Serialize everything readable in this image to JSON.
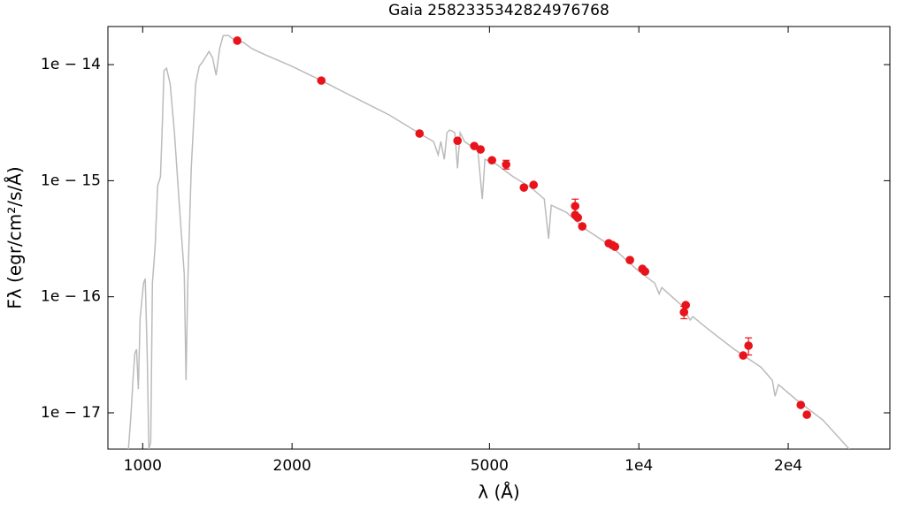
{
  "chart_data": {
    "type": "scatter",
    "title": "Gaia 2582335342824976768",
    "xlabel": "λ (Å)",
    "ylabel": "Fλ (egr/cm²/s/Å)",
    "xscale": "log",
    "yscale": "log",
    "xlim": [
      851,
      32060
    ],
    "ylim": [
      4.87e-18,
      2.13e-14
    ],
    "xticks": [
      1000,
      2000,
      5000,
      {
        "value": 10000,
        "label": "1e4"
      },
      {
        "value": 20000,
        "label": "2e4"
      }
    ],
    "yticks": [
      {
        "value": 1e-14,
        "label": "1e − 14"
      },
      {
        "value": 1e-15,
        "label": "1e − 15"
      },
      {
        "value": 1e-16,
        "label": "1e − 16"
      },
      {
        "value": 1e-17,
        "label": "1e − 17"
      }
    ],
    "model": {
      "color": "#bbbbbb",
      "x": [
        936,
        947,
        956,
        964,
        972,
        980,
        988,
        996,
        1004,
        1012,
        1021,
        1029,
        1038,
        1046,
        1059,
        1072,
        1086,
        1094,
        1104,
        1117,
        1136,
        1159,
        1188,
        1213,
        1223,
        1233,
        1253,
        1279,
        1300,
        1327,
        1360,
        1383,
        1406,
        1429,
        1453,
        1489,
        1532,
        1597,
        1663,
        1769,
        2000,
        2291,
        2667,
        3142,
        3614,
        3860,
        3940,
        3988,
        4054,
        4104,
        4155,
        4206,
        4258,
        4311,
        4364,
        4455,
        4738,
        4836,
        4896,
        5142,
        5584,
        6061,
        6447,
        6580,
        6661,
        7142,
        7755,
        8770,
        9917,
        10764,
        10990,
        11120,
        12178,
        12690,
        12845,
        13772,
        15575,
        17620,
        18580,
        18815,
        19120,
        20750,
        23490,
        26560
      ],
      "values": [
        4.86e-18,
        9.47e-18,
        1.91e-17,
        3.24e-17,
        3.53e-17,
        1.6e-17,
        6.52e-17,
        9.26e-17,
        1.31e-16,
        1.43e-16,
        3.24e-17,
        4.86e-18,
        5.6e-18,
        1.31e-16,
        2.65e-16,
        9.05e-16,
        1.08e-15,
        2.59e-15,
        8.84e-15,
        9.32e-15,
        6.8e-15,
        2.59e-15,
        5.35e-16,
        1.57e-16,
        1.91e-17,
        1.31e-16,
        1.28e-15,
        6.8e-15,
        9.66e-15,
        1.09e-14,
        1.3e-14,
        1.15e-14,
        8.1e-15,
        1.37e-14,
        1.78e-14,
        1.78e-14,
        1.63e-14,
        1.55e-14,
        1.37e-14,
        1.21e-14,
        9.66e-15,
        7.29e-15,
        5.23e-15,
        3.68e-15,
        2.55e-15,
        2.17e-15,
        1.67e-15,
        2.17e-15,
        1.53e-15,
        2.59e-15,
        2.73e-15,
        2.68e-15,
        2.59e-15,
        1.28e-15,
        2.59e-15,
        2.17e-15,
        1.82e-15,
        6.96e-16,
        1.53e-15,
        1.4e-15,
        1.08e-15,
        8.73e-16,
        6.96e-16,
        3.16e-16,
        6.15e-16,
        5.35e-16,
        3.9e-16,
        2.75e-16,
        1.71e-16,
        1.31e-16,
        1.06e-16,
        1.2e-16,
        8.48e-17,
        6.3e-17,
        6.75e-17,
        5.28e-17,
        3.53e-17,
        2.48e-17,
        1.91e-17,
        1.39e-17,
        1.75e-17,
        1.3e-17,
        8.68e-18,
        4.86e-18
      ]
    },
    "points": {
      "color": "#e8131b",
      "x": [
        1551,
        2291,
        3614,
        4311,
        4659,
        4797,
        5058,
        5402,
        5866,
        6136,
        7441,
        7441,
        7534,
        7691,
        8697,
        8841,
        8953,
        9594,
        10165,
        10292,
        12431,
        12330,
        16230,
        16634,
        21200,
        21810
      ],
      "values": [
        1.61e-14,
        7.29e-15,
        2.55e-15,
        2.21e-15,
        1.99e-15,
        1.86e-15,
        1.5e-15,
        1.38e-15,
        8.73e-16,
        9.21e-16,
        6.04e-16,
        5.07e-16,
        4.81e-16,
        4.04e-16,
        2.89e-16,
        2.79e-16,
        2.7e-16,
        2.07e-16,
        1.74e-16,
        1.65e-16,
        8.48e-17,
        7.37e-17,
        3.12e-17,
        3.79e-17,
        1.17e-17,
        9.64e-18
      ],
      "errors": [
        null,
        null,
        null,
        null,
        null,
        null,
        null,
        1.2e-16,
        null,
        null,
        9e-17,
        null,
        null,
        null,
        null,
        null,
        null,
        null,
        null,
        null,
        null,
        9e-18,
        null,
        6.4e-18,
        null,
        null
      ]
    }
  }
}
